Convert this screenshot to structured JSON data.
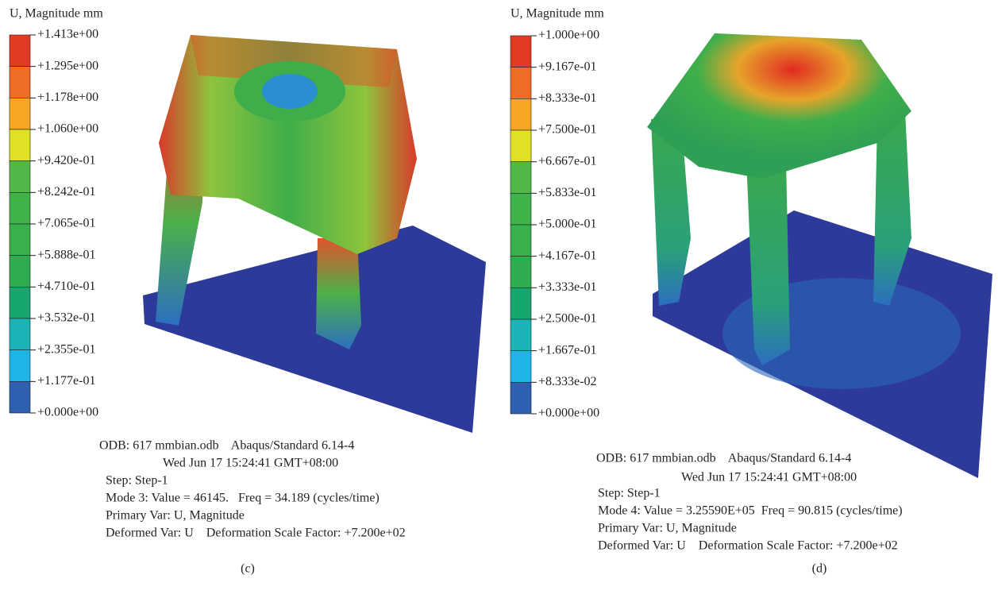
{
  "panels": [
    {
      "legend": {
        "title": "U, Magnitude mm",
        "labels": [
          "+1.413e+00",
          "+1.295e+00",
          "+1.178e+00",
          "+1.060e+00",
          "+9.420e-01",
          "+8.242e-01",
          "+7.065e-01",
          "+5.888e-01",
          "+4.710e-01",
          "+3.532e-01",
          "+2.355e-01",
          "+1.177e-01",
          "+0.000e+00"
        ]
      },
      "info": {
        "odb": "ODB: 617 mmbian.odb    Abaqus/Standard 6.14-4",
        "date": "Wed Jun 17 15:24:41 GMT+08:00",
        "step": "Step: Step-1",
        "mode": "Mode 3: Value = 46145.   Freq = 34.189 (cycles/time)",
        "primary": "Primary Var: U, Magnitude",
        "deformed": "Deformed Var: U    Deformation Scale Factor: +7.200e+02"
      },
      "caption": "(c)"
    },
    {
      "legend": {
        "title": "U, Magnitude mm",
        "labels": [
          "+1.000e+00",
          "+9.167e-01",
          "+8.333e-01",
          "+7.500e-01",
          "+6.667e-01",
          "+5.833e-01",
          "+5.000e-01",
          "+4.167e-01",
          "+3.333e-01",
          "+2.500e-01",
          "+1.667e-01",
          "+8.333e-02",
          "+0.000e+00"
        ]
      },
      "info": {
        "odb": "ODB: 617 mmbian.odb    Abaqus/Standard 6.14-4",
        "date": "Wed Jun 17 15:24:41 GMT+08:00",
        "step": "Step: Step-1",
        "mode": "Mode 4: Value = 3.25590E+05  Freq = 90.815 (cycles/time)",
        "primary": "Primary Var: U, Magnitude",
        "deformed": "Deformed Var: U    Deformation Scale Factor: +7.200e+02"
      },
      "caption": "(d)"
    }
  ]
}
